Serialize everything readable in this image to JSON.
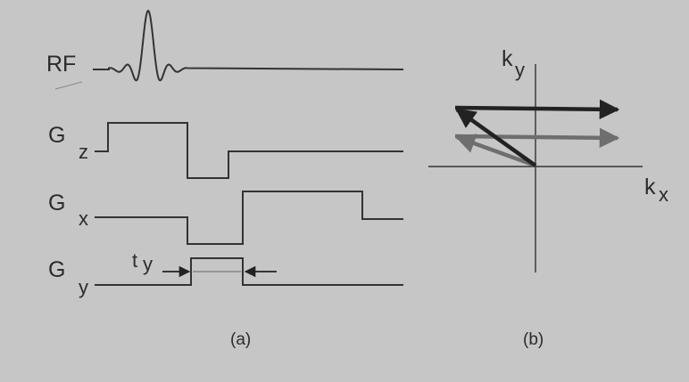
{
  "labels": {
    "rf": "RF",
    "gz_main": "G",
    "gz_sub": "z",
    "gx_main": "G",
    "gx_sub": "x",
    "gy_main": "G",
    "gy_sub": "y",
    "ty_main": "t",
    "ty_sub": "y",
    "ky_main": "k",
    "ky_sub": "y",
    "kx_main": "k",
    "kx_sub": "x"
  },
  "captions": {
    "a": "(a)",
    "b": "(b)"
  },
  "colors": {
    "background": "#c6c6c6",
    "line": "#333333",
    "arrow_dark": "#222222",
    "arrow_gray": "#6e6e6e"
  }
}
